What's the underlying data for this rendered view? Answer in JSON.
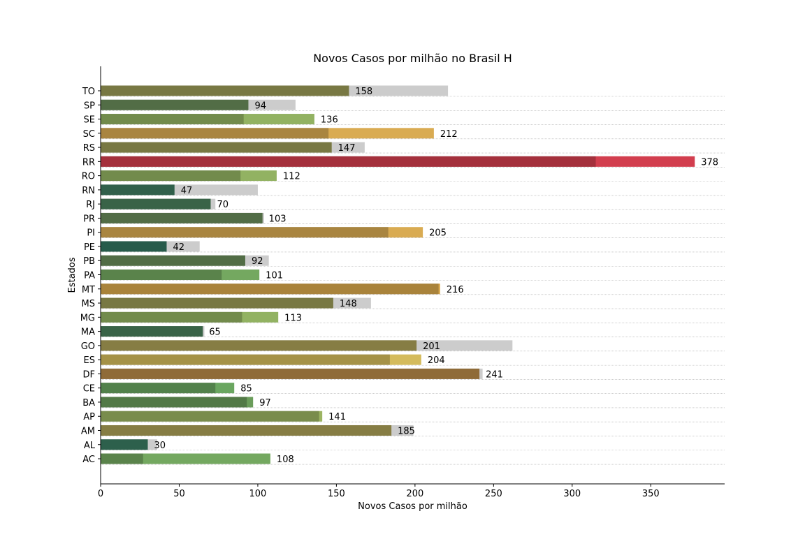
{
  "chart_data": {
    "type": "bar",
    "orientation": "horizontal",
    "title": "Novos Casos por milhão no Brasil H",
    "xlabel": "Novos Casos por milhão",
    "ylabel": "Estados",
    "xlim": [
      0,
      397
    ],
    "xticks": [
      0,
      50,
      100,
      150,
      200,
      250,
      300,
      350
    ],
    "grid": "horizontal dotted",
    "overlay_color": "#cccccc",
    "categories": [
      "TO",
      "SP",
      "SE",
      "SC",
      "RS",
      "RR",
      "RO",
      "RN",
      "RJ",
      "PR",
      "PI",
      "PE",
      "PB",
      "PA",
      "MT",
      "MS",
      "MG",
      "MA",
      "GO",
      "ES",
      "DF",
      "CE",
      "BA",
      "AP",
      "AM",
      "AL",
      "AC"
    ],
    "values": [
      158,
      94,
      136,
      212,
      147,
      378,
      112,
      47,
      70,
      103,
      205,
      42,
      92,
      101,
      216,
      148,
      113,
      65,
      201,
      204,
      241,
      85,
      97,
      141,
      185,
      30,
      108
    ],
    "reference_values": [
      221,
      124,
      91,
      145,
      168,
      315,
      89,
      100,
      73,
      104,
      183,
      63,
      107,
      77,
      215,
      172,
      90,
      66,
      262,
      184,
      243,
      73,
      93,
      139,
      199,
      36,
      27
    ],
    "bar_colors": [
      "#9a9a56",
      "#6a8c5a",
      "#92b262",
      "#d9ab52",
      "#9a9a56",
      "#d23e4e",
      "#92b262",
      "#3e7c60",
      "#4a7f5c",
      "#6a8c5a",
      "#d9ab52",
      "#337560",
      "#6a8c5a",
      "#74a860",
      "#d9a84c",
      "#9a9a56",
      "#92b262",
      "#4a7f5c",
      "#aca058",
      "#d4bb5c",
      "#b88a48",
      "#6aa660",
      "#6a9c5a",
      "#9cb462",
      "#aca058",
      "#3a7c62",
      "#74a860"
    ]
  }
}
